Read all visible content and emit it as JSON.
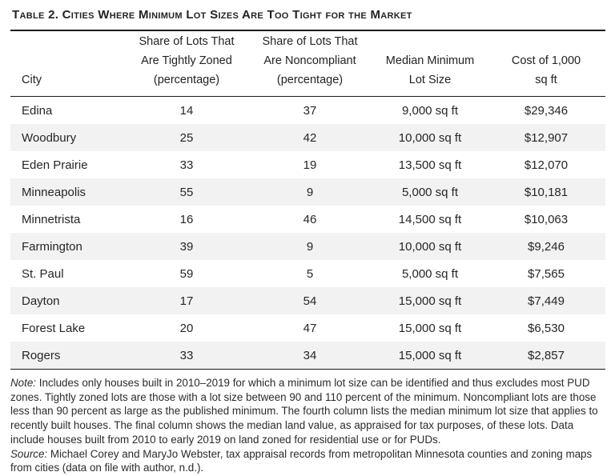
{
  "title": "Table 2. Cities Where Minimum Lot Sizes Are Too Tight for the Market",
  "header": {
    "cols": [
      {
        "lines": [
          "City"
        ]
      },
      {
        "lines": [
          "Share of Lots That",
          "Are Tightly Zoned",
          "(percentage)"
        ]
      },
      {
        "lines": [
          "Share of Lots That",
          "Are Noncompliant",
          "(percentage)"
        ]
      },
      {
        "lines": [
          "Median Minimum",
          "Lot Size"
        ]
      },
      {
        "lines": [
          "Cost of 1,000",
          "sq ft"
        ]
      }
    ]
  },
  "rows": [
    {
      "city": "Edina",
      "tightly_zoned": "14",
      "noncompliant": "37",
      "lot_size": "9,000 sq ft",
      "cost": "$29,346"
    },
    {
      "city": "Woodbury",
      "tightly_zoned": "25",
      "noncompliant": "42",
      "lot_size": "10,000 sq ft",
      "cost": "$12,907"
    },
    {
      "city": "Eden Prairie",
      "tightly_zoned": "33",
      "noncompliant": "19",
      "lot_size": "13,500 sq ft",
      "cost": "$12,070"
    },
    {
      "city": "Minneapolis",
      "tightly_zoned": "55",
      "noncompliant": "9",
      "lot_size": "5,000 sq ft",
      "cost": "$10,181"
    },
    {
      "city": "Minnetrista",
      "tightly_zoned": "16",
      "noncompliant": "46",
      "lot_size": "14,500 sq ft",
      "cost": "$10,063"
    },
    {
      "city": "Farmington",
      "tightly_zoned": "39",
      "noncompliant": "9",
      "lot_size": "10,000 sq ft",
      "cost": "$9,246"
    },
    {
      "city": "St. Paul",
      "tightly_zoned": "59",
      "noncompliant": "5",
      "lot_size": "5,000 sq ft",
      "cost": "$7,565"
    },
    {
      "city": "Dayton",
      "tightly_zoned": "17",
      "noncompliant": "54",
      "lot_size": "15,000 sq ft",
      "cost": "$7,449"
    },
    {
      "city": "Forest Lake",
      "tightly_zoned": "20",
      "noncompliant": "47",
      "lot_size": "15,000 sq ft",
      "cost": "$6,530"
    },
    {
      "city": "Rogers",
      "tightly_zoned": "33",
      "noncompliant": "34",
      "lot_size": "15,000 sq ft",
      "cost": "$2,857"
    }
  ],
  "notes": {
    "note_label": "Note:",
    "note_text": "Includes only houses built in 2010–2019 for which a minimum lot size can be identified and thus excludes most PUD zones. Tightly zoned lots are those with a lot size between 90 and 110 percent of the minimum. Noncompliant lots are those less than 90 percent as large as the published minimum. The fourth column lists the median minimum lot size that applies to recently built houses. The final column shows the median land value, as appraised for tax purposes, of these lots. Data include houses built from 2010 to early 2019 on land zoned for residential use or for PUDs.",
    "source_label": "Source:",
    "source_text": "Michael Corey and MaryJo Webster, tax appraisal records from metropolitan Minnesota counties and zoning maps from cities (data on file with author, n.d.)."
  },
  "colors": {
    "stripe": "#f2f2f2",
    "rule": "#1b1b1b",
    "text": "#272727"
  }
}
